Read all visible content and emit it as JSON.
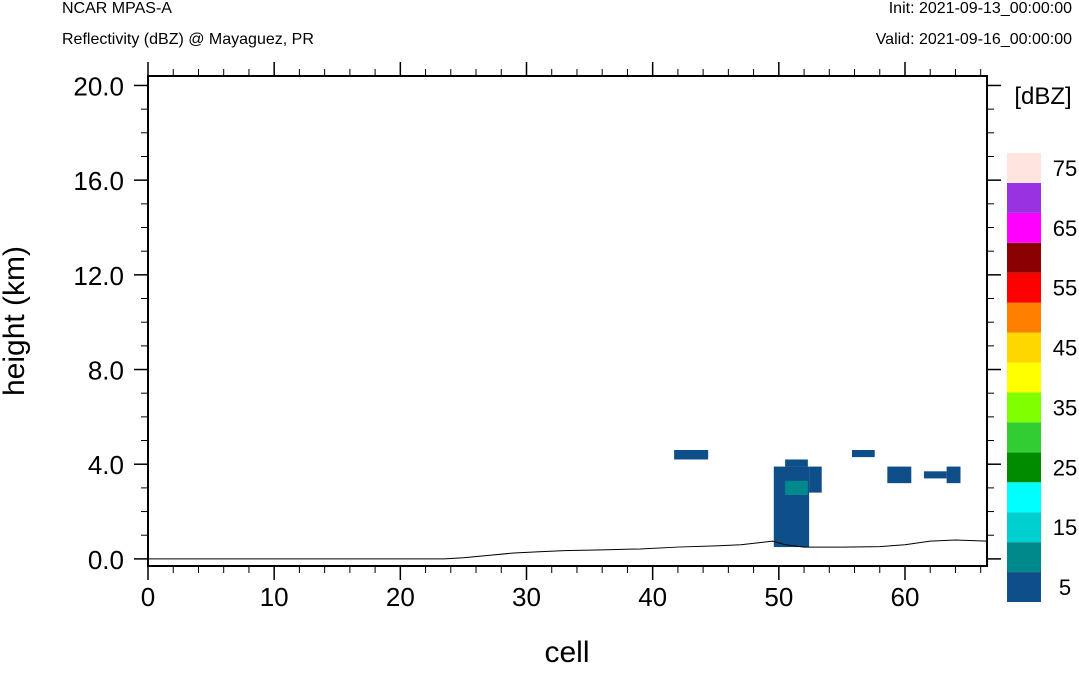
{
  "header": {
    "model": "NCAR MPAS-A",
    "subtitle": "Reflectivity (dBZ) @ Mayaguez, PR",
    "init": "Init: 2021-09-13_00:00:00",
    "valid": "Valid: 2021-09-16_00:00:00"
  },
  "chart_data": {
    "type": "heatmap",
    "xlabel": "cell",
    "ylabel": "height (km)",
    "xlim": [
      0,
      66.5
    ],
    "ylim": [
      -0.3,
      20.4
    ],
    "x_ticks": [
      0,
      10,
      20,
      30,
      40,
      50,
      60
    ],
    "x_tick_labels": [
      "0",
      "10",
      "20",
      "30",
      "40",
      "50",
      "60"
    ],
    "y_ticks": [
      0,
      4,
      8,
      12,
      16,
      20
    ],
    "y_tick_labels": [
      "0.0",
      "4.0",
      "8.0",
      "12.0",
      "16.0",
      "20.0"
    ],
    "colorbar": {
      "title": "[dBZ]",
      "levels": [
        5,
        10,
        15,
        20,
        25,
        30,
        35,
        40,
        45,
        50,
        55,
        60,
        65,
        70,
        75
      ],
      "labels": [
        "5",
        "15",
        "25",
        "35",
        "45",
        "55",
        "65",
        "75"
      ],
      "colors": [
        "#0e4f8a",
        "#00898a",
        "#00cfcf",
        "#00ffff",
        "#008b00",
        "#32cd32",
        "#7fff00",
        "#ffff00",
        "#ffd700",
        "#ff7f00",
        "#ff0000",
        "#8b0000",
        "#ff00ff",
        "#9932e0",
        "#ffe4e0"
      ]
    },
    "terrain": [
      [
        0,
        0.0
      ],
      [
        23.5,
        0.0
      ],
      [
        25,
        0.05
      ],
      [
        27,
        0.15
      ],
      [
        29,
        0.25
      ],
      [
        31,
        0.3
      ],
      [
        33,
        0.35
      ],
      [
        36,
        0.38
      ],
      [
        39,
        0.42
      ],
      [
        42,
        0.5
      ],
      [
        45,
        0.55
      ],
      [
        47,
        0.6
      ],
      [
        49.5,
        0.75
      ],
      [
        50.5,
        0.6
      ],
      [
        52,
        0.5
      ],
      [
        55,
        0.5
      ],
      [
        58,
        0.52
      ],
      [
        60,
        0.6
      ],
      [
        62,
        0.75
      ],
      [
        64,
        0.8
      ],
      [
        66.5,
        0.75
      ]
    ],
    "cells": [
      {
        "x0": 41.7,
        "x1": 44.4,
        "y0": 4.2,
        "y1": 4.6,
        "dbz": 5
      },
      {
        "x0": 49.6,
        "x1": 52.4,
        "y0": 0.5,
        "y1": 3.9,
        "dbz": 5
      },
      {
        "x0": 50.5,
        "x1": 52.3,
        "y0": 3.9,
        "y1": 4.2,
        "dbz": 5
      },
      {
        "x0": 52.4,
        "x1": 53.4,
        "y0": 2.8,
        "y1": 3.9,
        "dbz": 5
      },
      {
        "x0": 50.5,
        "x1": 52.3,
        "y0": 2.7,
        "y1": 3.3,
        "dbz": 10
      },
      {
        "x0": 55.8,
        "x1": 57.6,
        "y0": 4.3,
        "y1": 4.6,
        "dbz": 5
      },
      {
        "x0": 58.6,
        "x1": 60.5,
        "y0": 3.2,
        "y1": 3.9,
        "dbz": 5
      },
      {
        "x0": 61.5,
        "x1": 63.3,
        "y0": 3.4,
        "y1": 3.7,
        "dbz": 5
      },
      {
        "x0": 63.3,
        "x1": 64.4,
        "y0": 3.2,
        "y1": 3.9,
        "dbz": 5
      }
    ]
  }
}
